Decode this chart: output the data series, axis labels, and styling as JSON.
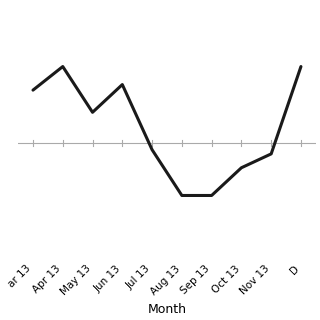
{
  "months": [
    "ar 13",
    "Apr 13",
    "May 13",
    "Jun 13",
    "Jul 13",
    "Aug 13",
    "Sep 13",
    "Oct 13",
    "Nov 13",
    "D"
  ],
  "x_indices": [
    0,
    1,
    2,
    3,
    4,
    5,
    6,
    7,
    8,
    9
  ],
  "y_vals": [
    38,
    55,
    22,
    42,
    -5,
    -38,
    -38,
    -18,
    -8,
    55
  ],
  "line_color": "#1a1a1a",
  "line_width": 2.2,
  "background_color": "#ffffff",
  "xlabel": "Month",
  "axhline_color": "#aaaaaa",
  "axhline_lw": 0.8,
  "tick_fontsize": 7.5,
  "xlabel_fontsize": 9,
  "ylim": [
    -80,
    100
  ],
  "xlim": [
    -0.5,
    9.5
  ]
}
